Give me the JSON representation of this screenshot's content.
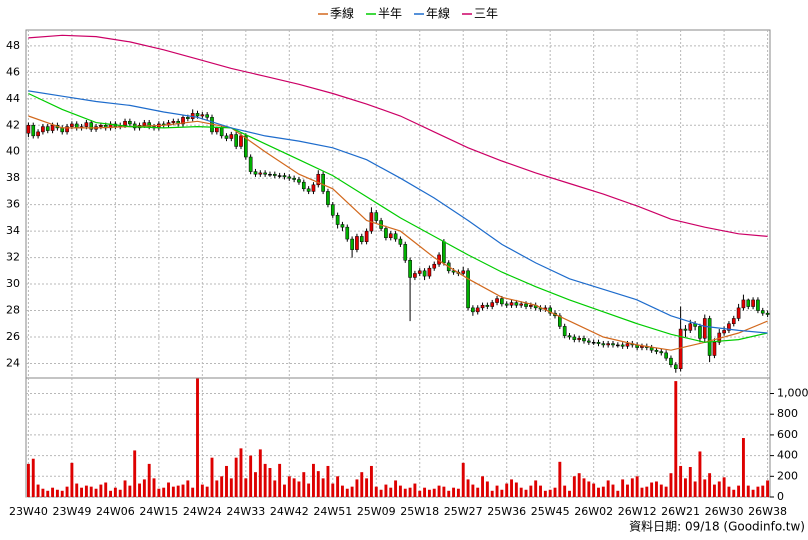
{
  "chart_data": [
    {
      "type": "candlestick",
      "categories": [
        "23W40",
        null,
        null,
        null,
        null,
        null,
        null,
        null,
        null,
        "23W49",
        null,
        null,
        null,
        null,
        null,
        null,
        null,
        null,
        "24W06",
        null,
        null,
        null,
        null,
        null,
        null,
        null,
        null,
        "24W15",
        null,
        null,
        null,
        null,
        null,
        null,
        null,
        null,
        "24W24",
        null,
        null,
        null,
        null,
        null,
        null,
        null,
        null,
        "24W33",
        null,
        null,
        null,
        null,
        null,
        null,
        null,
        null,
        "24W42",
        null,
        null,
        null,
        null,
        null,
        null,
        null,
        null,
        "24W51",
        null,
        null,
        null,
        null,
        null,
        null,
        null,
        null,
        "25W09",
        null,
        null,
        null,
        null,
        null,
        null,
        null,
        null,
        "25W18",
        null,
        null,
        null,
        null,
        null,
        null,
        null,
        null,
        "25W27",
        null,
        null,
        null,
        null,
        null,
        null,
        null,
        null,
        "25W36",
        null,
        null,
        null,
        null,
        null,
        null,
        null,
        null,
        "25W45",
        null,
        null,
        null,
        null,
        null,
        null,
        null,
        null,
        "26W02",
        null,
        null,
        null,
        null,
        null,
        null,
        null,
        null,
        "26W12",
        null,
        null,
        null,
        null,
        null,
        null,
        null,
        null,
        "26W21",
        null,
        null,
        null,
        null,
        null,
        null,
        null,
        null,
        "26W30",
        null,
        null,
        null,
        null,
        null,
        null,
        null,
        null,
        "26W38"
      ],
      "open": [
        41.4,
        42.0,
        41.2,
        41.5,
        41.9,
        41.6,
        42.0,
        41.8,
        41.5,
        41.9,
        42.1,
        41.8,
        41.9,
        42.2,
        41.7,
        41.9,
        42.0,
        41.8,
        42.1,
        41.9,
        42.0,
        42.3,
        42.1,
        41.8,
        42.0,
        42.2,
        41.9,
        41.8,
        42.1,
        42.0,
        42.2,
        42.3,
        42.1,
        42.6,
        42.5,
        42.9,
        42.7,
        42.8,
        42.6,
        41.5,
        41.8,
        41.2,
        41.0,
        41.3,
        40.4,
        41.2,
        39.6,
        38.5,
        38.3,
        38.4,
        38.3,
        38.3,
        38.2,
        38.2,
        38.1,
        38.0,
        37.9,
        37.7,
        37.2,
        37.0,
        37.5,
        38.3,
        37.0,
        36.0,
        35.2,
        34.5,
        34.3,
        33.4,
        32.6,
        33.6,
        33.2,
        34.0,
        35.4,
        34.8,
        34.2,
        33.5,
        33.8,
        33.4,
        33.0,
        31.8,
        30.5,
        30.8,
        31.0,
        30.6,
        31.2,
        31.5,
        33.2,
        31.6,
        31.0,
        30.9,
        30.8,
        31.0,
        28.2,
        27.9,
        28.2,
        28.4,
        28.3,
        28.6,
        28.9,
        28.5,
        28.4,
        28.6,
        28.4,
        28.5,
        28.3,
        28.4,
        28.2,
        28.1,
        28.2,
        27.8,
        27.6,
        26.8,
        26.1,
        26.0,
        25.8,
        25.9,
        25.7,
        25.6,
        25.6,
        25.5,
        25.4,
        25.5,
        25.4,
        25.4,
        25.3,
        25.5,
        25.4,
        25.2,
        25.3,
        25.2,
        25.0,
        24.9,
        24.8,
        24.4,
        23.9,
        23.6,
        26.6,
        26.5,
        27.0,
        26.8,
        25.9,
        27.4,
        24.6,
        25.6,
        26.3,
        26.5,
        27.0,
        27.4,
        28.2,
        28.8,
        28.3,
        28.8,
        28.0,
        27.8
      ],
      "high": [
        42.2,
        42.2,
        41.7,
        42.1,
        42.1,
        42.2,
        42.2,
        42.0,
        42.1,
        42.3,
        42.3,
        42.1,
        42.4,
        42.4,
        42.1,
        42.2,
        42.2,
        42.3,
        42.3,
        42.2,
        42.5,
        42.5,
        42.3,
        42.2,
        42.4,
        42.4,
        42.1,
        42.3,
        42.3,
        42.4,
        42.5,
        42.5,
        42.8,
        42.8,
        43.2,
        43.1,
        43.0,
        43.0,
        42.8,
        41.9,
        42.0,
        41.4,
        41.5,
        41.5,
        41.4,
        41.4,
        39.8,
        38.7,
        38.6,
        38.6,
        38.5,
        38.5,
        38.4,
        38.4,
        38.3,
        38.2,
        38.1,
        37.9,
        37.4,
        37.7,
        38.6,
        38.5,
        37.2,
        36.2,
        35.4,
        34.7,
        34.5,
        33.6,
        33.8,
        33.8,
        34.2,
        35.8,
        35.6,
        35.0,
        34.4,
        34.0,
        34.0,
        33.6,
        33.2,
        32.0,
        31.0,
        31.2,
        31.2,
        31.4,
        31.7,
        32.4,
        33.4,
        31.8,
        31.2,
        31.1,
        31.3,
        31.2,
        28.4,
        28.4,
        28.6,
        28.6,
        28.8,
        29.1,
        29.1,
        28.7,
        28.8,
        28.8,
        28.7,
        28.7,
        28.6,
        28.6,
        28.4,
        28.4,
        28.4,
        28.0,
        27.8,
        27.0,
        26.3,
        26.2,
        26.1,
        26.1,
        25.9,
        25.8,
        25.8,
        25.7,
        25.7,
        25.7,
        25.6,
        25.6,
        25.7,
        25.7,
        25.6,
        25.5,
        25.5,
        25.4,
        25.2,
        25.1,
        25.0,
        24.6,
        24.1,
        28.3,
        26.9,
        27.3,
        27.2,
        27.0,
        27.7,
        27.6,
        25.9,
        26.6,
        26.8,
        27.2,
        27.6,
        28.5,
        29.2,
        28.9,
        29.0,
        29.0,
        28.2,
        28.0
      ],
      "low": [
        41.1,
        41.0,
        41.0,
        41.3,
        41.4,
        41.4,
        41.6,
        41.3,
        41.3,
        41.7,
        41.6,
        41.6,
        41.7,
        41.5,
        41.5,
        41.7,
        41.6,
        41.6,
        41.7,
        41.7,
        41.8,
        41.9,
        41.6,
        41.6,
        41.8,
        41.7,
        41.6,
        41.6,
        41.8,
        41.8,
        42.0,
        41.9,
        41.9,
        42.3,
        42.3,
        42.5,
        42.5,
        42.4,
        41.3,
        41.3,
        41.0,
        40.8,
        40.8,
        40.2,
        40.2,
        39.4,
        38.3,
        38.1,
        38.1,
        38.1,
        38.1,
        38.0,
        38.0,
        37.9,
        37.8,
        37.7,
        37.5,
        37.0,
        36.8,
        36.8,
        37.3,
        36.8,
        35.8,
        35.0,
        34.2,
        34.0,
        33.2,
        32.0,
        32.4,
        33.0,
        33.0,
        33.8,
        34.6,
        34.0,
        33.3,
        33.3,
        33.2,
        32.8,
        31.6,
        27.2,
        30.3,
        30.6,
        30.3,
        30.4,
        31.0,
        31.3,
        31.4,
        30.8,
        30.7,
        30.6,
        30.6,
        28.0,
        27.6,
        27.7,
        28.0,
        28.1,
        28.1,
        28.4,
        28.3,
        28.2,
        28.2,
        28.2,
        28.2,
        28.1,
        28.1,
        28.0,
        27.9,
        27.9,
        27.6,
        27.4,
        26.6,
        25.9,
        25.8,
        25.6,
        25.6,
        25.5,
        25.4,
        25.4,
        25.3,
        25.2,
        25.2,
        25.2,
        25.2,
        25.1,
        25.1,
        25.2,
        25.0,
        25.0,
        25.0,
        24.8,
        24.7,
        24.6,
        24.2,
        23.7,
        23.3,
        23.4,
        26.0,
        26.3,
        26.5,
        25.6,
        25.6,
        24.1,
        24.4,
        25.4,
        26.1,
        26.3,
        26.8,
        27.2,
        28.0,
        28.1,
        28.1,
        27.8,
        27.6,
        27.5
      ],
      "close": [
        42.0,
        41.2,
        41.5,
        41.9,
        41.6,
        42.0,
        41.8,
        41.5,
        41.9,
        42.1,
        41.8,
        41.9,
        42.2,
        41.7,
        41.9,
        42.0,
        41.8,
        42.1,
        41.9,
        42.0,
        42.3,
        42.1,
        41.8,
        42.0,
        42.2,
        41.9,
        41.8,
        42.1,
        42.0,
        42.2,
        42.3,
        42.1,
        42.6,
        42.5,
        42.9,
        42.7,
        42.8,
        42.6,
        41.5,
        41.8,
        41.2,
        41.0,
        41.3,
        40.4,
        41.2,
        39.6,
        38.5,
        38.3,
        38.4,
        38.3,
        38.3,
        38.2,
        38.2,
        38.1,
        38.0,
        37.9,
        37.7,
        37.2,
        37.0,
        37.5,
        38.3,
        37.0,
        36.0,
        35.2,
        34.5,
        34.3,
        33.4,
        32.6,
        33.6,
        33.2,
        34.0,
        35.4,
        34.8,
        34.2,
        33.5,
        33.8,
        33.4,
        33.0,
        31.8,
        30.5,
        30.8,
        31.0,
        30.6,
        31.2,
        31.5,
        32.2,
        31.6,
        31.0,
        30.9,
        30.8,
        31.0,
        28.2,
        27.9,
        28.2,
        28.4,
        28.3,
        28.6,
        28.9,
        28.5,
        28.4,
        28.6,
        28.4,
        28.5,
        28.3,
        28.4,
        28.2,
        28.1,
        28.2,
        27.8,
        27.6,
        26.8,
        26.1,
        26.0,
        25.8,
        25.9,
        25.7,
        25.6,
        25.6,
        25.5,
        25.4,
        25.5,
        25.4,
        25.4,
        25.3,
        25.5,
        25.4,
        25.2,
        25.3,
        25.2,
        25.0,
        24.9,
        24.8,
        24.4,
        23.9,
        23.6,
        26.6,
        26.5,
        27.0,
        26.8,
        25.9,
        27.4,
        24.6,
        25.6,
        26.3,
        26.5,
        27.0,
        27.4,
        28.2,
        28.8,
        28.3,
        28.8,
        28.0,
        27.8,
        27.7
      ],
      "up_color": "#e00000",
      "down_color": "#00b000",
      "flat_color": "#000000",
      "ylim": [
        22.9,
        49.2
      ],
      "yticks": [
        24,
        26,
        28,
        30,
        32,
        34,
        36,
        38,
        40,
        42,
        44,
        46,
        48
      ],
      "grid": true,
      "legend": "top",
      "series": [
        {
          "name": "季線",
          "color": "#d2691e",
          "x": [
            0,
            7,
            14,
            21,
            28,
            35,
            42,
            49,
            56,
            63,
            70,
            77,
            84,
            91,
            98,
            105,
            112,
            119,
            126,
            133,
            140,
            147,
            153
          ],
          "values": [
            42.7,
            41.8,
            41.8,
            41.9,
            42.0,
            42.3,
            41.8,
            40.0,
            38.3,
            37.2,
            34.8,
            34.0,
            32.0,
            30.4,
            29.0,
            28.4,
            27.2,
            26.0,
            25.4,
            25.0,
            25.6,
            26.3,
            27.2
          ]
        },
        {
          "name": "半年",
          "color": "#00cc00",
          "x": [
            0,
            7,
            14,
            21,
            28,
            35,
            42,
            49,
            56,
            63,
            70,
            77,
            84,
            91,
            98,
            105,
            112,
            119,
            126,
            133,
            140,
            147,
            153
          ],
          "values": [
            44.4,
            43.2,
            42.2,
            41.9,
            41.8,
            41.9,
            41.8,
            40.6,
            39.4,
            38.2,
            36.6,
            35.0,
            33.6,
            32.2,
            30.9,
            29.8,
            28.8,
            27.9,
            27.0,
            26.2,
            25.6,
            25.8,
            26.3
          ]
        },
        {
          "name": "年線",
          "color": "#1e6ccc",
          "x": [
            0,
            7,
            14,
            21,
            28,
            35,
            42,
            49,
            56,
            63,
            70,
            77,
            84,
            91,
            98,
            105,
            112,
            119,
            126,
            133,
            140,
            147,
            153
          ],
          "values": [
            44.6,
            44.2,
            43.8,
            43.5,
            43.0,
            42.6,
            41.8,
            41.2,
            40.8,
            40.3,
            39.4,
            38.0,
            36.5,
            34.8,
            33.0,
            31.6,
            30.4,
            29.6,
            28.8,
            27.6,
            26.8,
            26.5,
            26.3
          ]
        },
        {
          "name": "三年",
          "color": "#cc0066",
          "x": [
            0,
            7,
            14,
            21,
            28,
            35,
            42,
            49,
            56,
            63,
            70,
            77,
            84,
            91,
            98,
            105,
            112,
            119,
            126,
            133,
            140,
            147,
            153
          ],
          "values": [
            48.6,
            48.8,
            48.7,
            48.3,
            47.7,
            47.0,
            46.3,
            45.7,
            45.1,
            44.4,
            43.6,
            42.7,
            41.5,
            40.3,
            39.3,
            38.4,
            37.6,
            36.8,
            35.9,
            34.9,
            34.3,
            33.8,
            33.6
          ]
        }
      ],
      "footer": "資料日期: 09/18 (Goodinfo.tw)"
    },
    {
      "type": "bar",
      "color": "#dd0000",
      "ylim": [
        0,
        1150
      ],
      "yticks": [
        0,
        200,
        400,
        600,
        800,
        {
          "value": 1000,
          "label": "1,000"
        }
      ],
      "grid": true,
      "values": [
        320,
        370,
        120,
        80,
        60,
        90,
        70,
        60,
        100,
        330,
        130,
        90,
        110,
        100,
        80,
        120,
        140,
        60,
        90,
        70,
        160,
        110,
        450,
        130,
        170,
        320,
        180,
        80,
        90,
        140,
        100,
        110,
        120,
        160,
        90,
        1145,
        120,
        100,
        380,
        160,
        200,
        300,
        180,
        380,
        470,
        180,
        400,
        240,
        460,
        320,
        280,
        160,
        320,
        120,
        200,
        180,
        150,
        240,
        130,
        320,
        250,
        180,
        300,
        130,
        200,
        110,
        80,
        100,
        170,
        240,
        180,
        300,
        100,
        70,
        120,
        90,
        160,
        110,
        80,
        90,
        130,
        60,
        90,
        70,
        80,
        110,
        100,
        60,
        90,
        80,
        330,
        170,
        120,
        90,
        200,
        150,
        60,
        110,
        70,
        130,
        170,
        140,
        90,
        70,
        110,
        160,
        110,
        60,
        70,
        90,
        340,
        110,
        60,
        200,
        230,
        180,
        150,
        130,
        90,
        100,
        160,
        120,
        60,
        170,
        120,
        180,
        200,
        90,
        100,
        140,
        150,
        120,
        100,
        230,
        1120,
        300,
        180,
        290,
        150,
        440,
        170,
        230,
        120,
        150,
        190,
        100,
        70,
        110,
        570,
        110,
        70,
        100,
        110,
        160
      ]
    }
  ]
}
